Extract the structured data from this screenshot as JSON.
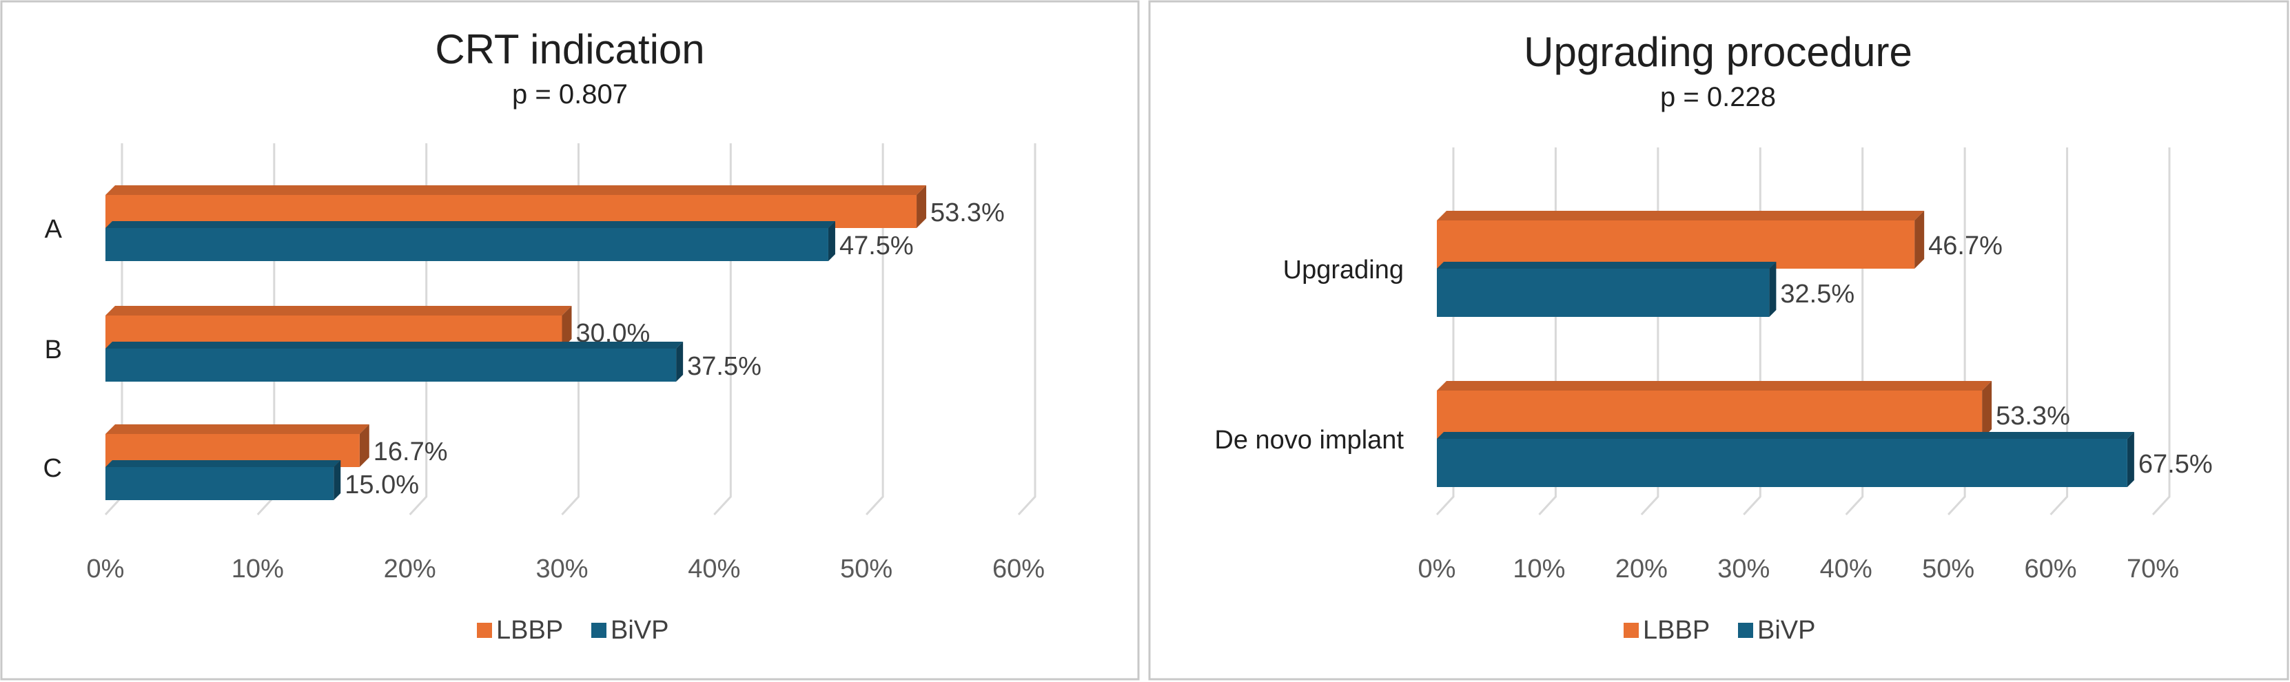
{
  "chart_data": [
    {
      "type": "bar",
      "orientation": "horizontal",
      "title": "CRT indication",
      "subtitle": "p = 0.807",
      "categories": [
        "A",
        "B",
        "C"
      ],
      "series": [
        {
          "name": "LBBP",
          "values": [
            53.3,
            30.0,
            16.7
          ],
          "labels": [
            "53.3%",
            "30.0%",
            "16.7%"
          ],
          "color": "#E97132"
        },
        {
          "name": "BiVP",
          "values": [
            47.5,
            37.5,
            15.0
          ],
          "labels": [
            "47.5%",
            "37.5%",
            "15.0%"
          ],
          "color": "#156082"
        }
      ],
      "xlim": [
        0,
        60
      ],
      "xticks": [
        "0%",
        "10%",
        "20%",
        "30%",
        "40%",
        "50%",
        "60%"
      ],
      "grid": true,
      "legend": "bottom"
    },
    {
      "type": "bar",
      "orientation": "horizontal",
      "title": "Upgrading procedure",
      "subtitle": "p = 0.228",
      "categories": [
        "Upgrading",
        "De novo implant"
      ],
      "series": [
        {
          "name": "LBBP",
          "values": [
            46.7,
            53.3
          ],
          "labels": [
            "46.7%",
            "53.3%"
          ],
          "color": "#E97132"
        },
        {
          "name": "BiVP",
          "values": [
            32.5,
            67.5
          ],
          "labels": [
            "32.5%",
            "67.5%"
          ],
          "color": "#156082"
        }
      ],
      "xlim": [
        0,
        70
      ],
      "xticks": [
        "0%",
        "10%",
        "20%",
        "30%",
        "40%",
        "50%",
        "60%",
        "70%"
      ],
      "grid": true,
      "legend": "bottom"
    }
  ]
}
